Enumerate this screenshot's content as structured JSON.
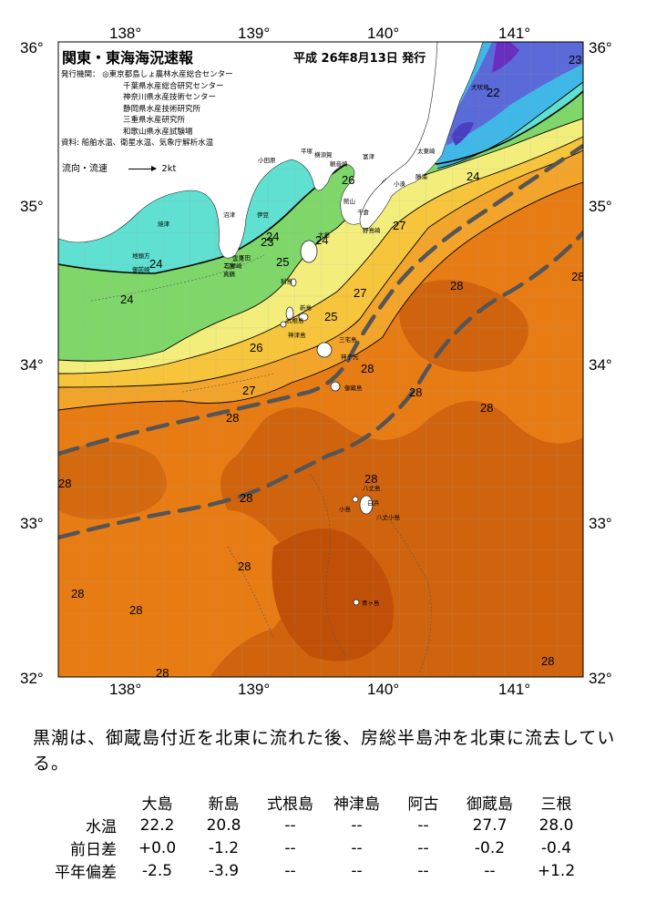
{
  "header": {
    "title": "関東・東海海況速報",
    "issue": "平成 26年8月13日 発行",
    "issuer_lines": [
      "発行機関： ◎東京都島しょ農林水産総合センター",
      "千葉県水産総合研究センター",
      "神奈川県水産技術センター",
      "静岡県水産技術研究所",
      "三重県水産研究所",
      "和歌山県水産試験場",
      "資料: 船舶水温、衛星水温、気象庁解析水温"
    ],
    "flow_legend": "流向・流速",
    "flow_unit": "2kt"
  },
  "axes": {
    "lon_labels": [
      "138°",
      "139°",
      "140°",
      "141°"
    ],
    "lat_labels": [
      "36°",
      "35°",
      "34°",
      "33°",
      "32°"
    ]
  },
  "places": {
    "shimoda": "下田",
    "izu": "伊豆",
    "iro": "石廊崎",
    "kumomi": "雲見",
    "tagata": "田方",
    "odawara": "小田原",
    "yokosuka": "横須賀",
    "hiratsuka": "平塚",
    "miura": "観音崎",
    "tateyama": "館山",
    "futtsu": "富津",
    "katsuura": "勝浦",
    "choshi": "銚子",
    "inubosaki": "犬吠埼",
    "taito": "太東崎",
    "kominato": "小湊",
    "nojimazaki": "野島崎",
    "chikura": "千倉",
    "oshima": "大島",
    "toshima": "利島",
    "niijima": "新島",
    "shikine": "式根島",
    "kozushima": "神津島",
    "miyake": "三宅島",
    "mikura": "御蔵島",
    "hachijo": "八丈島",
    "kojima": "小島",
    "aogashima": "青ヶ島",
    "mikomoto": "神子元",
    "omaezaki": "御前崎",
    "chikyu": "地頭方",
    "yaizu": "焼津",
    "numazu": "沼津",
    "shirahama": "白浜",
    "manazuru": "真鶴",
    "ninomiya": "二宮",
    "hachijo_ko": "八丈小島"
  },
  "contour_labels": [
    "23",
    "22",
    "24",
    "26",
    "27",
    "24",
    "25",
    "24",
    "24",
    "23",
    "24",
    "28",
    "27",
    "25",
    "26",
    "28",
    "27",
    "28",
    "28",
    "28",
    "28",
    "28",
    "28",
    "28",
    "28",
    "28",
    "28",
    "28",
    "28"
  ],
  "summary": "黒潮は、御蔵島付近を北東に流れた後、房総半島沖を北東に流去している。",
  "table": {
    "stations": [
      "大島",
      "新島",
      "式根島",
      "神津島",
      "阿古",
      "御蔵島",
      "三根"
    ],
    "rows": [
      {
        "label": "水温",
        "values": [
          "22.2",
          "20.8",
          "--",
          "--",
          "--",
          "27.7",
          "28.0"
        ]
      },
      {
        "label": "前日差",
        "values": [
          "+0.0",
          "-1.2",
          "--",
          "--",
          "--",
          "-0.2",
          "-0.4"
        ]
      },
      {
        "label": "平年偏差",
        "values": [
          "-2.5",
          "-3.9",
          "--",
          "--",
          "--",
          "--",
          "+1.2"
        ]
      }
    ]
  },
  "colors": {
    "t28": "#e87c14",
    "t28dark": "#c85a0a",
    "t27": "#f3a42a",
    "t26": "#f6c53c",
    "t25": "#f3ee7c",
    "t24": "#7fd76a",
    "t23": "#5fe0d0",
    "t22": "#3fb8e8",
    "t21": "#5a6ad8",
    "t20": "#6a2ec0",
    "land": "#ffffff",
    "kuroshio": "#555555"
  }
}
